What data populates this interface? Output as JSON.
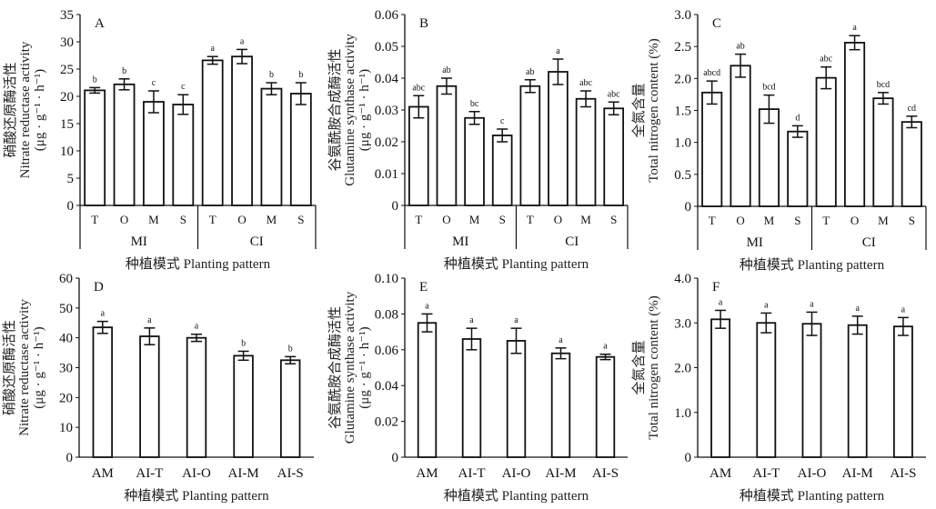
{
  "chart_data": [
    {
      "type": "bar",
      "panel_label": "A",
      "ylabel_cn": "硝酸还原酶活性",
      "ylabel_en": "Nitrate reductase activity",
      "ylabel_unit": "(μg · g⁻¹ · h⁻¹)",
      "xlabel": "种植模式 Planting pattern",
      "categories": [
        "T",
        "O",
        "M",
        "S",
        "T",
        "O",
        "M",
        "S"
      ],
      "groups": [
        {
          "name": "MI",
          "size": 4
        },
        {
          "name": "CI",
          "size": 4
        }
      ],
      "values": [
        21.1,
        22.2,
        19.0,
        18.5,
        26.6,
        27.3,
        21.4,
        20.5
      ],
      "errors": [
        0.5,
        1.0,
        2.0,
        1.8,
        0.7,
        1.3,
        1.1,
        2.0
      ],
      "letters": [
        "b",
        "b",
        "c",
        "c",
        "a",
        "a",
        "b",
        "b"
      ],
      "ylim": [
        0,
        35
      ],
      "yticks": [
        0,
        5,
        10,
        15,
        20,
        25,
        30,
        35
      ],
      "ytick_labels": [
        "0",
        "5",
        "10",
        "15",
        "20",
        "25",
        "30",
        "35"
      ]
    },
    {
      "type": "bar",
      "panel_label": "B",
      "ylabel_cn": "谷氨酰胺合成酶活性",
      "ylabel_en": "Glutamine synthase activity",
      "ylabel_unit": "(μg · g⁻¹ · h⁻¹)",
      "xlabel": "种植模式 Planting pattern",
      "categories": [
        "T",
        "O",
        "M",
        "S",
        "T",
        "O",
        "M",
        "S"
      ],
      "groups": [
        {
          "name": "MI",
          "size": 4
        },
        {
          "name": "CI",
          "size": 4
        }
      ],
      "values": [
        0.031,
        0.0375,
        0.0275,
        0.022,
        0.0375,
        0.042,
        0.0335,
        0.0305
      ],
      "errors": [
        0.0035,
        0.0025,
        0.002,
        0.002,
        0.002,
        0.004,
        0.0025,
        0.002
      ],
      "letters": [
        "abc",
        "ab",
        "bc",
        "c",
        "ab",
        "a",
        "abc",
        "abc"
      ],
      "ylim": [
        0,
        0.06
      ],
      "yticks": [
        0,
        0.01,
        0.02,
        0.03,
        0.04,
        0.05,
        0.06
      ],
      "ytick_labels": [
        "0",
        "0.01",
        "0.02",
        "0.03",
        "0.04",
        "0.05",
        "0.06"
      ]
    },
    {
      "type": "bar",
      "panel_label": "C",
      "ylabel_cn": "全氮含量",
      "ylabel_en": "Total nitrogen content (%)",
      "ylabel_unit": "",
      "xlabel": "种植模式 Planting pattern",
      "categories": [
        "T",
        "O",
        "M",
        "S",
        "T",
        "O",
        "M",
        "S"
      ],
      "groups": [
        {
          "name": "MI",
          "size": 4
        },
        {
          "name": "CI",
          "size": 4
        }
      ],
      "values": [
        1.78,
        2.2,
        1.52,
        1.17,
        2.01,
        2.56,
        1.69,
        1.32
      ],
      "errors": [
        0.18,
        0.18,
        0.22,
        0.09,
        0.17,
        0.11,
        0.09,
        0.09
      ],
      "letters": [
        "abcd",
        "ab",
        "bcd",
        "d",
        "abc",
        "a",
        "bcd",
        "cd"
      ],
      "ylim": [
        0,
        3.0
      ],
      "yticks": [
        0,
        0.5,
        1.0,
        1.5,
        2.0,
        2.5,
        3.0
      ],
      "ytick_labels": [
        "0",
        "0.5",
        "1.0",
        "1.5",
        "2.0",
        "2.5",
        "3.0"
      ]
    },
    {
      "type": "bar",
      "panel_label": "D",
      "ylabel_cn": "硝酸还原酶活性",
      "ylabel_en": "Nitrate reductase activity",
      "ylabel_unit": "(μg · g⁻¹ · h⁻¹)",
      "xlabel": "种植模式 Planting pattern",
      "categories": [
        "AM",
        "AI-T",
        "AI-O",
        "AI-M",
        "AI-S"
      ],
      "groups": [],
      "values": [
        43.5,
        40.5,
        40.0,
        34.0,
        32.5
      ],
      "errors": [
        2.0,
        2.8,
        1.2,
        1.5,
        1.2
      ],
      "letters": [
        "a",
        "a",
        "a",
        "b",
        "b"
      ],
      "ylim": [
        0,
        60
      ],
      "yticks": [
        0,
        10,
        20,
        30,
        40,
        50,
        60
      ],
      "ytick_labels": [
        "0",
        "10",
        "20",
        "30",
        "40",
        "50",
        "60"
      ]
    },
    {
      "type": "bar",
      "panel_label": "E",
      "ylabel_cn": "谷氨酰胺合成酶活性",
      "ylabel_en": "Glutamine synthase activity",
      "ylabel_unit": "(μg · g⁻¹ · h⁻¹)",
      "xlabel": "种植模式 Planting pattern",
      "categories": [
        "AM",
        "AI-T",
        "AI-O",
        "AI-M",
        "AI-S"
      ],
      "groups": [],
      "values": [
        0.075,
        0.066,
        0.065,
        0.058,
        0.056
      ],
      "errors": [
        0.005,
        0.006,
        0.007,
        0.003,
        0.0015
      ],
      "letters": [
        "a",
        "a",
        "a",
        "a",
        "a"
      ],
      "ylim": [
        0,
        0.1
      ],
      "yticks": [
        0,
        0.02,
        0.04,
        0.06,
        0.08,
        0.1
      ],
      "ytick_labels": [
        "0",
        "0.02",
        "0.04",
        "0.06",
        "0.08",
        "0.10"
      ]
    },
    {
      "type": "bar",
      "panel_label": "F",
      "ylabel_cn": "全氮含量",
      "ylabel_en": "Total nitrogen content (%)",
      "ylabel_unit": "",
      "xlabel": "种植模式 Planting pattern",
      "categories": [
        "AM",
        "AI-T",
        "AI-O",
        "AI-M",
        "AI-S"
      ],
      "groups": [],
      "values": [
        3.08,
        3.0,
        2.98,
        2.95,
        2.92
      ],
      "errors": [
        0.2,
        0.22,
        0.26,
        0.2,
        0.2
      ],
      "letters": [
        "a",
        "a",
        "a",
        "a",
        "a"
      ],
      "ylim": [
        0,
        4.0
      ],
      "yticks": [
        0,
        1.0,
        2.0,
        3.0,
        4.0
      ],
      "ytick_labels": [
        "0",
        "1.0",
        "2.0",
        "3.0",
        "4.0"
      ]
    }
  ],
  "colors": {
    "bar_fill": "#ffffff",
    "stroke": "#111111"
  }
}
